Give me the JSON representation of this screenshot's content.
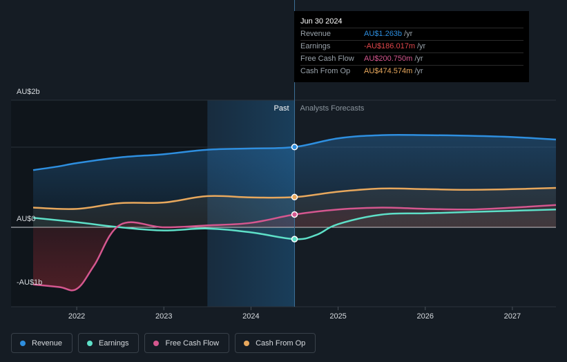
{
  "chart_data": {
    "type": "line",
    "x_ticks": [
      "2022",
      "2023",
      "2024",
      "2025",
      "2026",
      "2027"
    ],
    "y_ticks": [
      {
        "label": "AU$2b",
        "value": 2.0
      },
      {
        "label": "AU$0",
        "value": 0
      },
      {
        "label": "-AU$1b",
        "value": -1.0
      }
    ],
    "ylim": [
      -1.1,
      2.0
    ],
    "xlim": [
      2021.5,
      2027.5
    ],
    "past_label": "Past",
    "forecast_label": "Analysts Forecasts",
    "divider_x": 2024.5,
    "highlight_start": 2023.5,
    "series": [
      {
        "name": "Revenue",
        "color": "#2e8fe0",
        "points": [
          [
            2021.5,
            0.9
          ],
          [
            2021.8,
            0.96
          ],
          [
            2022.0,
            1.01
          ],
          [
            2022.5,
            1.1
          ],
          [
            2023.0,
            1.15
          ],
          [
            2023.5,
            1.22
          ],
          [
            2024.0,
            1.24
          ],
          [
            2024.5,
            1.263
          ],
          [
            2025.0,
            1.4
          ],
          [
            2025.5,
            1.45
          ],
          [
            2026.0,
            1.45
          ],
          [
            2026.5,
            1.44
          ],
          [
            2027.0,
            1.42
          ],
          [
            2027.5,
            1.38
          ]
        ]
      },
      {
        "name": "Earnings",
        "color": "#5ee0c8",
        "points": [
          [
            2021.5,
            0.15
          ],
          [
            2022.0,
            0.08
          ],
          [
            2022.5,
            0.0
          ],
          [
            2023.0,
            -0.05
          ],
          [
            2023.5,
            -0.02
          ],
          [
            2024.0,
            -0.08
          ],
          [
            2024.5,
            -0.186
          ],
          [
            2024.75,
            -0.12
          ],
          [
            2025.0,
            0.05
          ],
          [
            2025.5,
            0.2
          ],
          [
            2026.0,
            0.22
          ],
          [
            2026.5,
            0.24
          ],
          [
            2027.0,
            0.26
          ],
          [
            2027.5,
            0.28
          ]
        ]
      },
      {
        "name": "Free Cash Flow",
        "color": "#d5578f",
        "points": [
          [
            2021.5,
            -0.9
          ],
          [
            2021.8,
            -0.94
          ],
          [
            2022.0,
            -0.97
          ],
          [
            2022.2,
            -0.6
          ],
          [
            2022.5,
            0.04
          ],
          [
            2023.0,
            0.0
          ],
          [
            2023.5,
            0.03
          ],
          [
            2024.0,
            0.07
          ],
          [
            2024.5,
            0.201
          ],
          [
            2025.0,
            0.28
          ],
          [
            2025.5,
            0.31
          ],
          [
            2026.0,
            0.29
          ],
          [
            2026.5,
            0.28
          ],
          [
            2027.0,
            0.31
          ],
          [
            2027.5,
            0.35
          ]
        ]
      },
      {
        "name": "Cash From Op",
        "color": "#e8a85d",
        "points": [
          [
            2021.5,
            0.31
          ],
          [
            2022.0,
            0.29
          ],
          [
            2022.5,
            0.38
          ],
          [
            2023.0,
            0.39
          ],
          [
            2023.5,
            0.49
          ],
          [
            2024.0,
            0.47
          ],
          [
            2024.5,
            0.475
          ],
          [
            2025.0,
            0.56
          ],
          [
            2025.5,
            0.61
          ],
          [
            2026.0,
            0.6
          ],
          [
            2026.5,
            0.59
          ],
          [
            2027.0,
            0.6
          ],
          [
            2027.5,
            0.62
          ]
        ]
      }
    ]
  },
  "tooltip": {
    "date": "Jun 30 2024",
    "rows": [
      {
        "label": "Revenue",
        "value": "AU$1.263b",
        "unit": "/yr",
        "color": "#2e8fe0"
      },
      {
        "label": "Earnings",
        "value": "-AU$186.017m",
        "unit": "/yr",
        "color": "#e0464b"
      },
      {
        "label": "Free Cash Flow",
        "value": "AU$200.750m",
        "unit": "/yr",
        "color": "#d5578f"
      },
      {
        "label": "Cash From Op",
        "value": "AU$474.574m",
        "unit": "/yr",
        "color": "#e8a85d"
      }
    ]
  },
  "legend": [
    {
      "label": "Revenue",
      "color": "#2e8fe0"
    },
    {
      "label": "Earnings",
      "color": "#5ee0c8"
    },
    {
      "label": "Free Cash Flow",
      "color": "#d5578f"
    },
    {
      "label": "Cash From Op",
      "color": "#e8a85d"
    }
  ]
}
